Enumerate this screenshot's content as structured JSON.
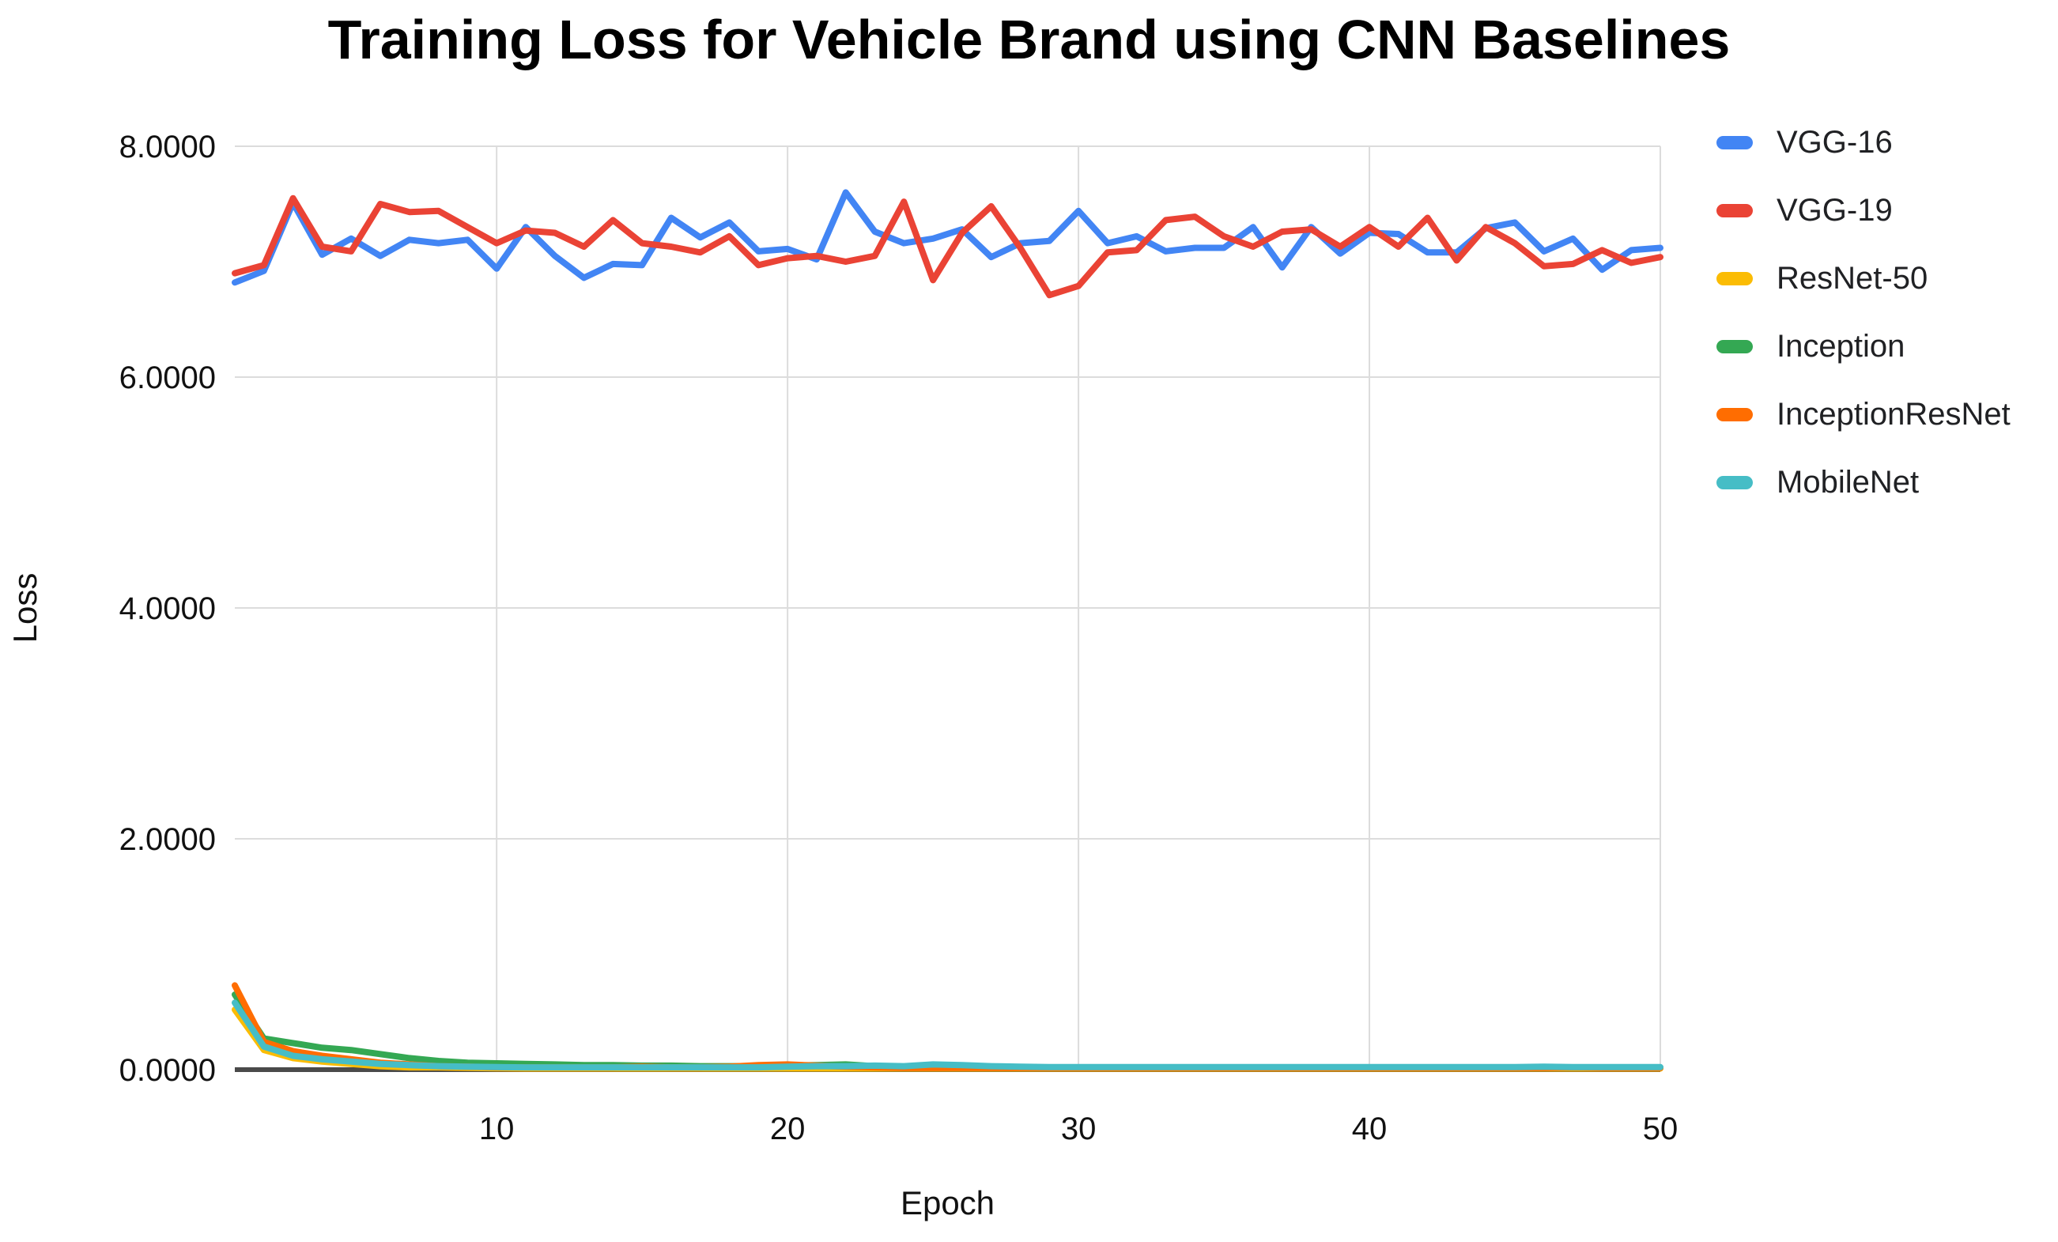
{
  "chart_data": {
    "type": "line",
    "title": "Training Loss for Vehicle Brand using CNN Baselines",
    "xlabel": "Epoch",
    "ylabel": "Loss",
    "xlim": [
      1,
      50
    ],
    "ylim": [
      0,
      8
    ],
    "grid": true,
    "legend_position": "right",
    "x": [
      1,
      2,
      3,
      4,
      5,
      6,
      7,
      8,
      9,
      10,
      11,
      12,
      13,
      14,
      15,
      16,
      17,
      18,
      19,
      20,
      21,
      22,
      23,
      24,
      25,
      26,
      27,
      28,
      29,
      30,
      31,
      32,
      33,
      34,
      35,
      36,
      37,
      38,
      39,
      40,
      41,
      42,
      43,
      44,
      45,
      46,
      47,
      48,
      49,
      50
    ],
    "xticks": [
      {
        "v": 10,
        "label": "10"
      },
      {
        "v": 20,
        "label": "20"
      },
      {
        "v": 30,
        "label": "30"
      },
      {
        "v": 40,
        "label": "40"
      },
      {
        "v": 50,
        "label": "50"
      }
    ],
    "yticks": [
      {
        "v": 8,
        "label": "8.0000"
      },
      {
        "v": 6,
        "label": "6.0000"
      },
      {
        "v": 4,
        "label": "4.0000"
      },
      {
        "v": 2,
        "label": "2.0000"
      },
      {
        "v": 0,
        "label": "0.0000"
      }
    ],
    "series": [
      {
        "name": "VGG-16",
        "color": "#4285F4",
        "values": [
          6.82,
          6.92,
          7.51,
          7.06,
          7.2,
          7.05,
          7.19,
          7.16,
          7.19,
          6.94,
          7.3,
          7.05,
          6.86,
          6.98,
          6.97,
          7.38,
          7.21,
          7.34,
          7.09,
          7.11,
          7.02,
          7.6,
          7.26,
          7.16,
          7.2,
          7.28,
          7.04,
          7.16,
          7.18,
          7.44,
          7.16,
          7.22,
          7.09,
          7.12,
          7.12,
          7.3,
          6.95,
          7.3,
          7.07,
          7.25,
          7.24,
          7.08,
          7.08,
          7.29,
          7.34,
          7.09,
          7.2,
          6.93,
          7.1,
          7.12
        ]
      },
      {
        "name": "VGG-19",
        "color": "#EA4335",
        "values": [
          6.9,
          6.97,
          7.55,
          7.13,
          7.09,
          7.5,
          7.43,
          7.44,
          7.3,
          7.16,
          7.27,
          7.25,
          7.13,
          7.36,
          7.16,
          7.13,
          7.08,
          7.22,
          6.97,
          7.03,
          7.05,
          7.0,
          7.05,
          7.52,
          6.84,
          7.25,
          7.48,
          7.12,
          6.71,
          6.79,
          7.08,
          7.1,
          7.36,
          7.39,
          7.22,
          7.13,
          7.26,
          7.28,
          7.13,
          7.3,
          7.13,
          7.38,
          7.01,
          7.3,
          7.16,
          6.96,
          6.98,
          7.1,
          6.99,
          7.04
        ]
      },
      {
        "name": "ResNet-50",
        "color": "#FBBC04",
        "values": [
          0.52,
          0.17,
          0.1,
          0.07,
          0.05,
          0.03,
          0.02,
          0.02,
          0.015,
          0.012,
          0.01,
          0.01,
          0.01,
          0.01,
          0.01,
          0.01,
          0.01,
          0.01,
          0.01,
          0.01,
          0.01,
          0.01,
          0.01,
          0.01,
          0.01,
          0.01,
          0.01,
          0.01,
          0.01,
          0.01,
          0.01,
          0.01,
          0.01,
          0.01,
          0.01,
          0.01,
          0.01,
          0.01,
          0.01,
          0.01,
          0.01,
          0.01,
          0.01,
          0.01,
          0.01,
          0.01,
          0.01,
          0.01,
          0.01,
          0.01
        ]
      },
      {
        "name": "Inception",
        "color": "#34A853",
        "values": [
          0.65,
          0.27,
          0.23,
          0.19,
          0.17,
          0.135,
          0.1,
          0.075,
          0.06,
          0.055,
          0.05,
          0.045,
          0.04,
          0.04,
          0.035,
          0.035,
          0.03,
          0.03,
          0.03,
          0.035,
          0.04,
          0.045,
          0.03,
          0.025,
          0.025,
          0.025,
          0.02,
          0.02,
          0.02,
          0.02,
          0.02,
          0.02,
          0.02,
          0.02,
          0.02,
          0.02,
          0.02,
          0.02,
          0.02,
          0.02,
          0.02,
          0.02,
          0.02,
          0.02,
          0.02,
          0.02,
          0.02,
          0.02,
          0.02,
          0.02
        ]
      },
      {
        "name": "InceptionResNet",
        "color": "#FF6D01",
        "values": [
          0.73,
          0.24,
          0.16,
          0.12,
          0.09,
          0.06,
          0.045,
          0.03,
          0.025,
          0.02,
          0.02,
          0.02,
          0.02,
          0.02,
          0.025,
          0.02,
          0.02,
          0.025,
          0.04,
          0.045,
          0.035,
          0.025,
          0.02,
          0.015,
          0.015,
          0.015,
          0.015,
          0.015,
          0.015,
          0.015,
          0.015,
          0.015,
          0.015,
          0.015,
          0.015,
          0.015,
          0.015,
          0.015,
          0.015,
          0.015,
          0.015,
          0.015,
          0.015,
          0.015,
          0.015,
          0.015,
          0.02,
          0.015,
          0.015,
          0.015
        ]
      },
      {
        "name": "MobileNet",
        "color": "#46BDC6",
        "values": [
          0.58,
          0.2,
          0.12,
          0.09,
          0.07,
          0.05,
          0.04,
          0.03,
          0.025,
          0.022,
          0.02,
          0.02,
          0.02,
          0.02,
          0.02,
          0.02,
          0.02,
          0.02,
          0.02,
          0.025,
          0.03,
          0.03,
          0.035,
          0.03,
          0.045,
          0.04,
          0.03,
          0.025,
          0.022,
          0.022,
          0.022,
          0.022,
          0.022,
          0.022,
          0.022,
          0.022,
          0.022,
          0.022,
          0.022,
          0.022,
          0.022,
          0.022,
          0.022,
          0.022,
          0.022,
          0.025,
          0.022,
          0.022,
          0.022,
          0.022
        ]
      }
    ],
    "style": {
      "gridline_color": "#dcdcdc",
      "baseline_color": "#4a4a4a",
      "background": "#ffffff",
      "line_width": 8
    }
  }
}
